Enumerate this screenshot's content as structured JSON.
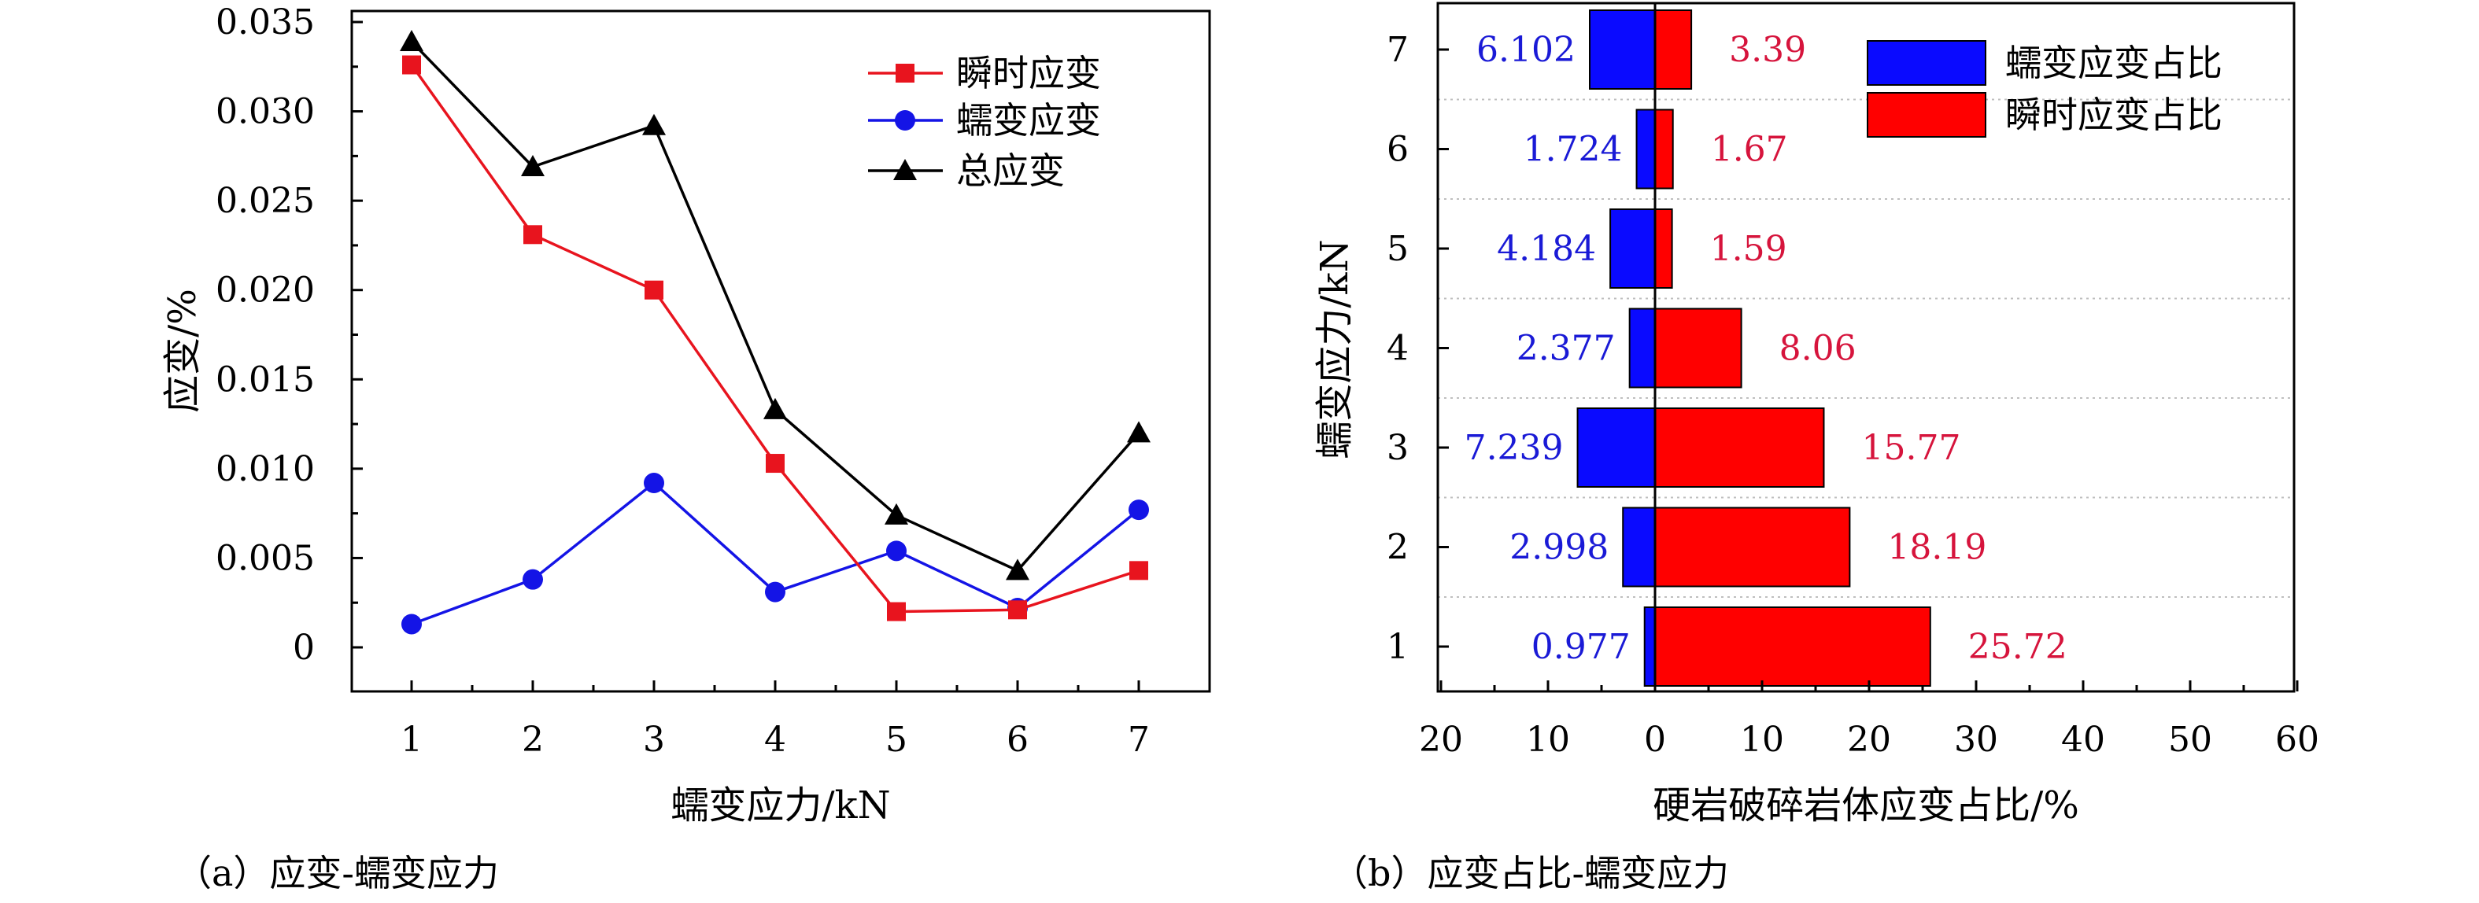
{
  "chart_data": [
    {
      "type": "line",
      "caption": "（a）应变-蠕变应力",
      "xlabel": "蠕变应力/kN",
      "ylabel": "应变/%",
      "x": [
        1,
        2,
        3,
        4,
        5,
        6,
        7
      ],
      "xticks": [
        "1",
        "2",
        "3",
        "4",
        "5",
        "6",
        "7"
      ],
      "yticks": [
        "0",
        "0.005",
        "0.010",
        "0.015",
        "0.020",
        "0.025",
        "0.030",
        "0.035"
      ],
      "ylim": [
        -0.002,
        0.0375
      ],
      "legend_position": "top-right",
      "series": [
        {
          "name": "瞬时应变",
          "marker": "square",
          "color": "#e8141e",
          "values": [
            0.0326,
            0.0231,
            0.02,
            0.0103,
            0.002,
            0.0021,
            0.0043
          ]
        },
        {
          "name": "蠕变应变",
          "marker": "circle",
          "color": "#1414e6",
          "values": [
            0.0013,
            0.0038,
            0.0092,
            0.0031,
            0.0054,
            0.0022,
            0.0077
          ]
        },
        {
          "name": "总应变",
          "marker": "triangle",
          "color": "#000000",
          "values": [
            0.0339,
            0.0269,
            0.0292,
            0.0133,
            0.0074,
            0.0043,
            0.012
          ]
        }
      ]
    },
    {
      "type": "bar",
      "orientation": "horizontal",
      "caption": "（b）应变占比-蠕变应力",
      "xlabel": "硬岩破碎岩体应变占比/%",
      "ylabel": "蠕变应力/kN",
      "categories": [
        "1",
        "2",
        "3",
        "4",
        "5",
        "6",
        "7"
      ],
      "xticks": [
        "20",
        "10",
        "0",
        "10",
        "20",
        "30",
        "40",
        "50",
        "60"
      ],
      "xlim": [
        -20,
        60
      ],
      "legend_position": "top-right",
      "grid": "horizontal dotted",
      "series": [
        {
          "name": "蠕变应变占比",
          "color": "#0a0aff",
          "direction": "left",
          "values": [
            0.977,
            2.998,
            7.239,
            2.377,
            4.184,
            1.724,
            6.102
          ],
          "labels": [
            "0.977",
            "2.998",
            "7.239",
            "2.377",
            "4.184",
            "1.724",
            "6.102"
          ]
        },
        {
          "name": "瞬时应变占比",
          "color": "#ff0000",
          "direction": "right",
          "values": [
            25.72,
            18.19,
            15.77,
            8.06,
            1.59,
            1.67,
            3.39
          ],
          "labels": [
            "25.72",
            "18.19",
            "15.77",
            "8.06",
            "1.59",
            "1.67",
            "3.39"
          ]
        }
      ]
    }
  ]
}
